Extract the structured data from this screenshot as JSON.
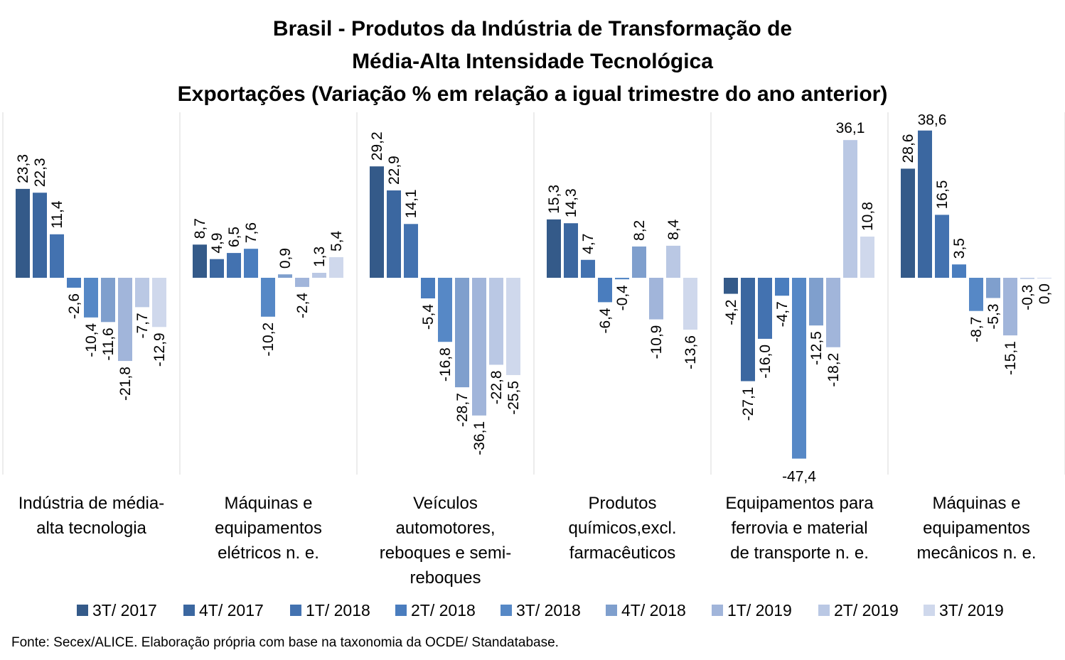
{
  "chart_data": {
    "type": "bar",
    "title_lines": [
      "Brasil - Produtos da Indústria de Transformação de",
      "Média-Alta Intensidade Tecnológica",
      "Exportações (Variação % em relação a igual trimestre do ano anterior)"
    ],
    "categories": [
      [
        "Indústria de média-",
        "alta tecnologia"
      ],
      [
        "Máquinas e",
        "equipamentos",
        "elétricos n. e."
      ],
      [
        "Veículos",
        "automotores,",
        "reboques e semi-",
        "reboques"
      ],
      [
        "Produtos",
        "químicos,excl.",
        "farmacêuticos"
      ],
      [
        "Equipamentos para",
        "ferrovia e material",
        "de transporte n. e."
      ],
      [
        "Máquinas e",
        "equipamentos",
        "mecânicos  n. e."
      ]
    ],
    "series": [
      {
        "name": "3T/ 2017",
        "color": "#345a89",
        "values": [
          23.3,
          8.7,
          29.2,
          15.3,
          -4.2,
          28.6
        ],
        "labels": [
          "23,3",
          "8,7",
          "29,2",
          "15,3",
          "-4,2",
          "28,6"
        ]
      },
      {
        "name": "4T/ 2017",
        "color": "#3b67a0",
        "values": [
          22.3,
          4.9,
          22.9,
          14.3,
          -27.1,
          38.6
        ],
        "labels": [
          "22,3",
          "4,9",
          "22,9",
          "14,3",
          "-27,1",
          "38,6"
        ]
      },
      {
        "name": "1T/ 2018",
        "color": "#4372b0",
        "values": [
          11.4,
          6.5,
          14.1,
          4.7,
          -16.0,
          16.5
        ],
        "labels": [
          "11,4",
          "6,5",
          "14,1",
          "4,7",
          "-16,0",
          "16,5"
        ]
      },
      {
        "name": "2T/ 2018",
        "color": "#4a7dbe",
        "values": [
          -2.6,
          7.6,
          -5.4,
          -6.4,
          -4.7,
          3.5
        ],
        "labels": [
          "-2,6",
          "7,6",
          "-5,4",
          "-6,4",
          "-4,7",
          "3,5"
        ]
      },
      {
        "name": "3T/ 2018",
        "color": "#5688c6",
        "values": [
          -10.4,
          -10.2,
          -16.8,
          -0.4,
          -47.4,
          -8.7
        ],
        "labels": [
          "-10,4",
          "-10,2",
          "-16,8",
          "-0,4",
          "-47,4",
          "-8,7"
        ]
      },
      {
        "name": "4T/ 2018",
        "color": "#7f9fcd",
        "values": [
          -11.6,
          0.9,
          -28.7,
          8.2,
          -12.5,
          -5.3
        ],
        "labels": [
          "-11,6",
          "0,9",
          "-28,7",
          "8,2",
          "-12,5",
          "-5,3"
        ]
      },
      {
        "name": "1T/ 2019",
        "color": "#a1b5da",
        "values": [
          -21.8,
          -2.4,
          -36.1,
          -10.9,
          -18.2,
          -15.1
        ],
        "labels": [
          "-21,8",
          "-2,4",
          "-36,1",
          "-10,9",
          "-18,2",
          "-15,1"
        ]
      },
      {
        "name": "2T/ 2019",
        "color": "#bac8e4",
        "values": [
          -7.7,
          1.3,
          -22.8,
          8.4,
          36.1,
          -0.3
        ],
        "labels": [
          "-7,7",
          "1,3",
          "-22,8",
          "8,4",
          "36,1",
          "-0,3"
        ]
      },
      {
        "name": "3T/ 2019",
        "color": "#cfd8ec",
        "values": [
          -12.9,
          5.4,
          -25.5,
          -13.6,
          10.8,
          0.0
        ],
        "labels": [
          "-12,9",
          "5,4",
          "-25,5",
          "-13,6",
          "10,8",
          "0,0"
        ]
      }
    ],
    "ylim": [
      -50,
      40
    ],
    "grid": false,
    "legend_position": "bottom",
    "source": "Fonte: Secex/ALICE. Elaboração própria com base na taxonomia da OCDE/ Standatabase."
  }
}
